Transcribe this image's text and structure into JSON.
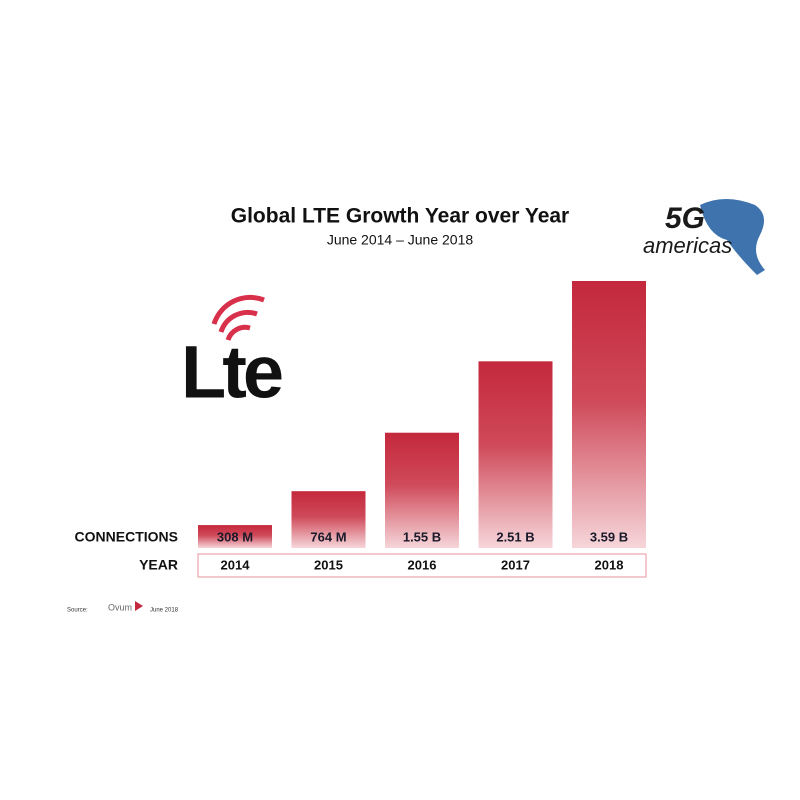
{
  "chart_data": {
    "type": "bar",
    "title": "Global LTE Growth Year over Year",
    "subtitle": "June 2014 – June 2018",
    "categories": [
      "2014",
      "2015",
      "2016",
      "2017",
      "2018"
    ],
    "values": [
      308,
      764,
      1550,
      2510,
      3590
    ],
    "value_labels": [
      "308 M",
      "764 M",
      "1.55 B",
      "2.51 B",
      "3.59 B"
    ],
    "color": "#c4283c",
    "row_labels": [
      "CONNECTIONS",
      "YEAR"
    ],
    "source": {
      "label": "Source:",
      "name": "Ovum",
      "date": "June 2018"
    },
    "logos": {
      "lte": "Lte",
      "fiveg": "5G",
      "americas": "americas"
    }
  }
}
